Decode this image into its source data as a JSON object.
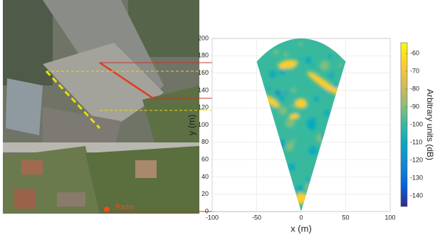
{
  "chart_data": {
    "type": "heatmap",
    "xlabel": "x (m)",
    "ylabel": "y (m)",
    "xlim": [
      -100,
      100
    ],
    "xticks": [
      -100,
      -50,
      0,
      50,
      100
    ],
    "ylim": [
      0,
      200
    ],
    "yticks": [
      0,
      20,
      40,
      60,
      80,
      100,
      120,
      140,
      160,
      180,
      200
    ],
    "grid": true,
    "colorbar": {
      "label": "Arbitrary units (dB)",
      "lim": [
        -146,
        -54
      ],
      "ticks": [
        -140,
        -130,
        -120,
        -110,
        -100,
        -90,
        -80,
        -70,
        -60
      ],
      "colors": [
        "#352a87",
        "#0363e1",
        "#1485d4",
        "#06a7c6",
        "#38b99e",
        "#92bf73",
        "#d9ba56",
        "#fcce2e",
        "#f9fb0e"
      ]
    },
    "annotation": "Radar"
  }
}
